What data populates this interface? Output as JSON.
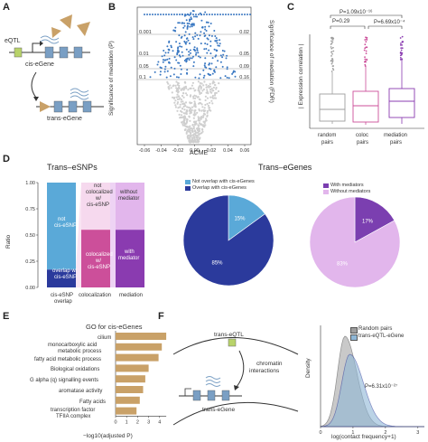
{
  "panels": {
    "A": {
      "label": "A",
      "eqtl": "eQTL",
      "cis_egene": "cis-eGene",
      "trans_egene": "trans-eGene"
    },
    "B": {
      "label": "B",
      "ylabel_left": "Significance of mediation (P)",
      "ylabel_right": "Significance of mediation (FDR)",
      "left_ticks": [
        "0.001",
        "0.01",
        "0.05",
        "0.1"
      ],
      "right_ticks": [
        "0.02",
        "0.05",
        "0.09",
        "0.16"
      ],
      "xlabel": "ACME",
      "x_ticks": [
        "-0.06",
        "-0.04",
        "-0.02",
        "0.00",
        "0.02",
        "0.04",
        "0.06"
      ]
    },
    "C": {
      "label": "C",
      "ylabel": "| Expression correlation |",
      "sig_top": "P=1.09x10⁻¹⁶",
      "sig_left": "P=0.29",
      "sig_right": "P=6.69x10⁻⁴",
      "cats": [
        "random\npairs",
        "coloc\npairs",
        "mediation\npairs"
      ],
      "cat1a": "random",
      "cat1b": "pairs",
      "cat2a": "coloc",
      "cat2b": "pairs",
      "cat3a": "mediation",
      "cat3b": "pairs",
      "colors": [
        "#9e9e9e",
        "#cc4f9a",
        "#8a3bb0"
      ]
    },
    "D": {
      "label": "D",
      "title_left": "Trans–eSNPs",
      "title_right": "Trans–eGenes",
      "ylabel": "Ratio",
      "y_ticks": [
        "0.00",
        "0.25",
        "0.50",
        "0.75",
        "1.00"
      ],
      "bar1_top": "not\ncis-eSNP",
      "bar1_top_a": "not",
      "bar1_top_b": "cis-eSNP",
      "bar1_bot_a": "overlap w/",
      "bar1_bot_b": "cis-eSNP",
      "bar2_top_a": "not",
      "bar2_top_b": "colocalized",
      "bar2_top_c": "w/",
      "bar2_top_d": "cis-eSNP",
      "bar2_bot_a": "colocalized",
      "bar2_bot_b": "w/",
      "bar2_bot_c": "cis-eSNP",
      "bar3_top_a": "without",
      "bar3_top_b": "mediator",
      "bar3_bot_a": "with",
      "bar3_bot_b": "mediator",
      "x_cat1a": "cis-eSNP",
      "x_cat1b": "overlap",
      "x_cat2": "colocalization",
      "x_cat3": "mediation",
      "pie1_legend": [
        "Not overlap with cis-eGenes",
        "Overlap with cis-eGenes"
      ],
      "pie1_values": [
        15,
        85
      ],
      "pie1_labels": [
        "15%",
        "85%"
      ],
      "pie1_colors": [
        "#5aa9d8",
        "#2b3a9c"
      ],
      "pie2_legend": [
        "With mediators",
        "Without mediators"
      ],
      "pie2_values": [
        17,
        83
      ],
      "pie2_labels": [
        "17%",
        "83%"
      ],
      "pie2_colors": [
        "#7b3fb0",
        "#e2b6ec"
      ],
      "bar_colors": {
        "blue_dark": "#2b3a9c",
        "blue_light": "#5aa9d8",
        "pink": "#cc4f9a",
        "pink_light": "#f6d9ee",
        "purple": "#8a3bb0",
        "purple_light": "#e2b6ec"
      }
    },
    "E": {
      "label": "E",
      "title": "GO for cis-eGenes",
      "xlabel": "−log10(adjusted P)",
      "x_ticks": [
        "0",
        "1",
        "2",
        "3",
        "4"
      ],
      "terms": [
        "cilium",
        "monocarboxylic acid\nmetabolic process",
        "fatty acid metabolic process",
        "Biological oxidations",
        "G alpha (q) signalling events",
        "aromatase activity",
        "Fatty acids",
        "transcription factor\nTFIIA complex"
      ],
      "term1": "cilium",
      "term2a": "monocarboxylic acid",
      "term2b": "metabolic process",
      "term3": "fatty acid metabolic process",
      "term4": "Biological oxidations",
      "term5": "G alpha (q) signalling events",
      "term6": "aromatase activity",
      "term7": "Fatty acids",
      "term8a": "transcription factor",
      "term8b": "TFIIA complex",
      "values": [
        4.6,
        4.2,
        3.9,
        3.0,
        2.7,
        2.5,
        2.2,
        1.9
      ],
      "bar_color": "#c9a168"
    },
    "F": {
      "label": "F",
      "trans_eqtl": "trans-eQTL",
      "chromatin_a": "chromatin",
      "chromatin_b": "interactions",
      "trans_egene": "trans-eGene",
      "ylabel": "Density",
      "xlabel": "log(contact frequency+1)",
      "x_ticks": [
        "0",
        "1",
        "2",
        "3"
      ],
      "legend": [
        "Random pairs",
        "trans-eQTL-eGene"
      ],
      "pval": "P=6.31x10⁻²⁷",
      "colors": [
        "#9e9e9e",
        "#8fb7d6"
      ]
    }
  }
}
